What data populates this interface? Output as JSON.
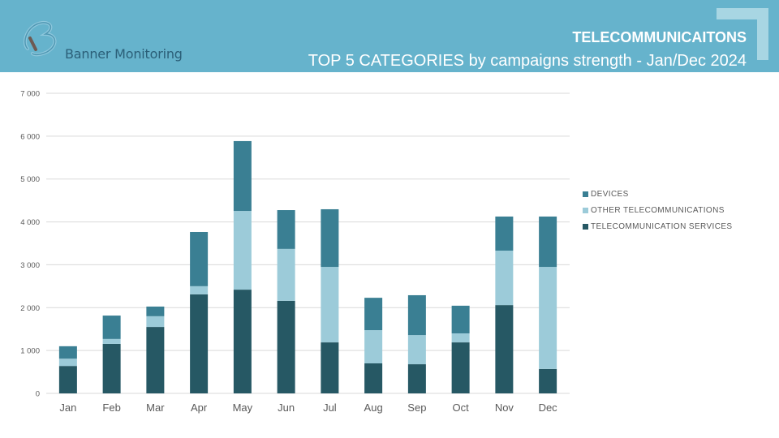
{
  "header": {
    "brand": "Banner Monitoring",
    "title": "TELECOMMUNICAITONS",
    "subtitle": "TOP 5 CATEGORIES by campaigns strength - Jan/Dec 2024"
  },
  "colors": {
    "header_bg": "#66b3cc",
    "devices": "#3a7f93",
    "other": "#9ccbd9",
    "services": "#265864",
    "grid": "#d9d9d9"
  },
  "chart_data": {
    "type": "bar",
    "stacked": true,
    "title": "TOP 5 CATEGORIES by campaigns strength - Jan/Dec 2024",
    "xlabel": "",
    "ylabel": "",
    "ylim": [
      0,
      7000
    ],
    "yticks": [
      0,
      1000,
      2000,
      3000,
      4000,
      5000,
      6000,
      7000
    ],
    "ytick_labels": [
      "0",
      "1 000",
      "2 000",
      "3 000",
      "4 000",
      "5 000",
      "6 000",
      "7 000"
    ],
    "grid": true,
    "legend_position": "right",
    "categories": [
      "Jan",
      "Feb",
      "Mar",
      "Apr",
      "May",
      "Jun",
      "Jul",
      "Aug",
      "Sep",
      "Oct",
      "Nov",
      "Dec"
    ],
    "series": [
      {
        "name": "TELECOMMUNICATION SERVICES",
        "color": "#265864",
        "values": [
          640,
          1155,
          1550,
          2310,
          2420,
          2160,
          1190,
          700,
          680,
          1190,
          2060,
          570
        ]
      },
      {
        "name": "OTHER TELECOMMUNICATIONS",
        "color": "#9ccbd9",
        "values": [
          170,
          115,
          250,
          190,
          1835,
          1210,
          1760,
          775,
          680,
          210,
          1270,
          2380
        ]
      },
      {
        "name": "DEVICES",
        "color": "#3a7f93",
        "values": [
          290,
          545,
          225,
          1265,
          1630,
          905,
          1345,
          755,
          930,
          645,
          795,
          1175
        ]
      }
    ],
    "legend": [
      "DEVICES",
      "OTHER TELECOMMUNICATIONS",
      "TELECOMMUNICATION SERVICES"
    ]
  }
}
